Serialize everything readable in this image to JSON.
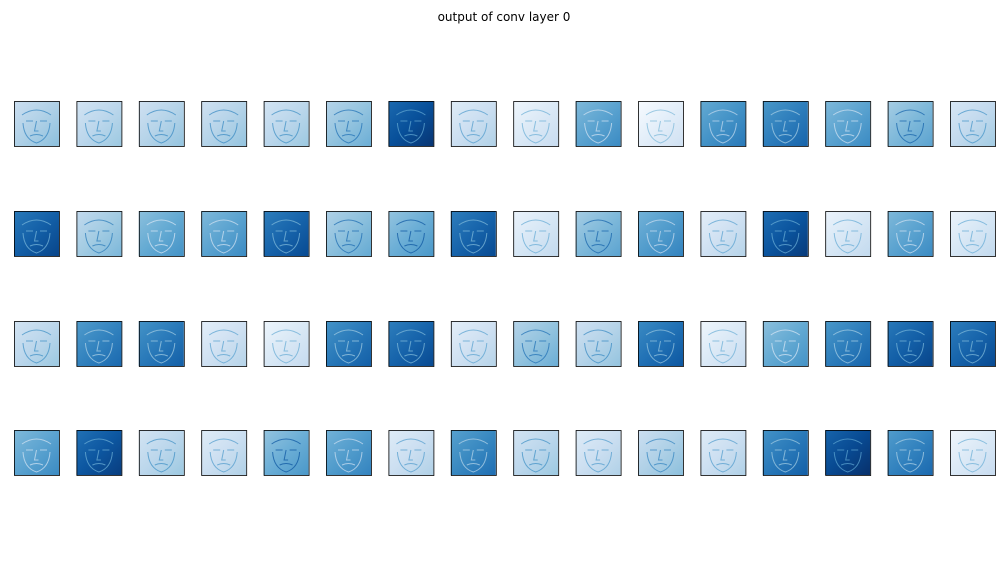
{
  "title": "output of conv layer 0",
  "chart_data": {
    "type": "heatmap",
    "title": "output of conv layer 0",
    "colormap": "Blues",
    "rows": 4,
    "cols": 16,
    "ticks": "hidden",
    "panels": [
      [
        0.32,
        0.28,
        0.3,
        0.3,
        0.28,
        0.4,
        0.88,
        0.22,
        0.14,
        0.55,
        0.1,
        0.62,
        0.7,
        0.55,
        0.45,
        0.26
      ],
      [
        0.82,
        0.36,
        0.52,
        0.55,
        0.8,
        0.42,
        0.5,
        0.8,
        0.16,
        0.45,
        0.58,
        0.2,
        0.86,
        0.16,
        0.55,
        0.16
      ],
      [
        0.28,
        0.68,
        0.72,
        0.2,
        0.15,
        0.72,
        0.8,
        0.2,
        0.4,
        0.3,
        0.75,
        0.14,
        0.52,
        0.7,
        0.82,
        0.8
      ],
      [
        0.55,
        0.85,
        0.28,
        0.22,
        0.5,
        0.58,
        0.22,
        0.66,
        0.28,
        0.22,
        0.32,
        0.22,
        0.72,
        0.9,
        0.68,
        0.14
      ]
    ]
  }
}
